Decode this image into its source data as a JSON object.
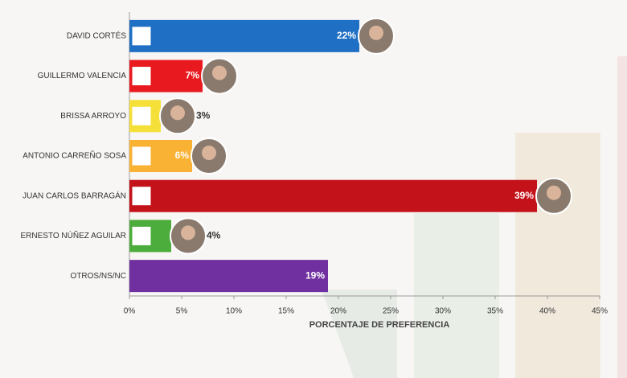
{
  "chart_data": {
    "type": "hbar",
    "xlabel": "PORCENTAJE DE PREFERENCIA",
    "categories": [
      "DAVID CORTÉS",
      "GUILLERMO VALENCIA",
      "BRISSA ARROYO",
      "ANTONIO CARREÑO SOSA",
      "JUAN CARLOS BARRAGÁN",
      "ERNESTO NÚÑEZ AGUILAR",
      "OTROS/NS/NC"
    ],
    "values": [
      22,
      7,
      3,
      6,
      39,
      4,
      19
    ],
    "value_labels": [
      "22%",
      "7%",
      "3%",
      "6%",
      "39%",
      "4%",
      "19%"
    ],
    "colors": [
      "#1f6fc4",
      "#e8191f",
      "#f5e03a",
      "#f9b233",
      "#c4121a",
      "#4cad3c",
      "#7030a0"
    ],
    "xlim": [
      0,
      45
    ],
    "xticks": [
      {
        "value": 0,
        "label": "0%"
      },
      {
        "value": 5,
        "label": "5%"
      },
      {
        "value": 10,
        "label": "10%"
      },
      {
        "value": 15,
        "label": "15%"
      },
      {
        "value": 20,
        "label": "20%"
      },
      {
        "value": 25,
        "label": "25%"
      },
      {
        "value": 30,
        "label": "30%"
      },
      {
        "value": 35,
        "label": "35%"
      },
      {
        "value": 40,
        "label": "40%"
      },
      {
        "value": 45,
        "label": "45%"
      }
    ]
  }
}
